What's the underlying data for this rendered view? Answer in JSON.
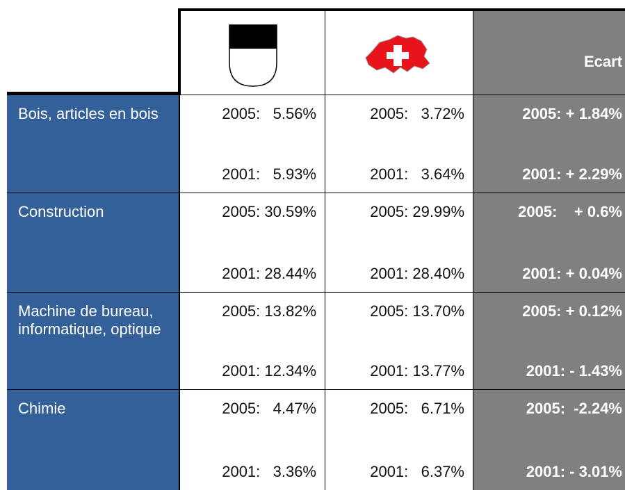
{
  "header": {
    "ecart": "Ecart"
  },
  "rows": [
    {
      "label": "Bois, articles en bois",
      "cells": [
        [
          "2005:   5.56%",
          "2001:   5.93%"
        ],
        [
          "2005:   3.72%",
          "2001:   3.64%"
        ],
        [
          "2005: + 1.84%",
          "2001: + 2.29%"
        ]
      ]
    },
    {
      "label": "Construction",
      "cells": [
        [
          "2005: 30.59%",
          "2001: 28.44%"
        ],
        [
          "2005: 29.99%",
          "2001: 28.40%"
        ],
        [
          "2005:    + 0.6%",
          "2001: + 0.04%"
        ]
      ]
    },
    {
      "label": "Machine de bureau, informatique, optique",
      "cells": [
        [
          "2005: 13.82%",
          "2001: 12.34%"
        ],
        [
          "2005: 13.70%",
          "2001: 13.77%"
        ],
        [
          "2005: + 0.12%",
          "2001: - 1.43%"
        ]
      ]
    },
    {
      "label": "Chimie",
      "cells": [
        [
          "2005:   4.47%",
          "2001:   3.36%"
        ],
        [
          "2005:   6.71%",
          "2001:   6.37%"
        ],
        [
          "2005:  -2.24%",
          "2001: - 3.01%"
        ]
      ]
    }
  ]
}
